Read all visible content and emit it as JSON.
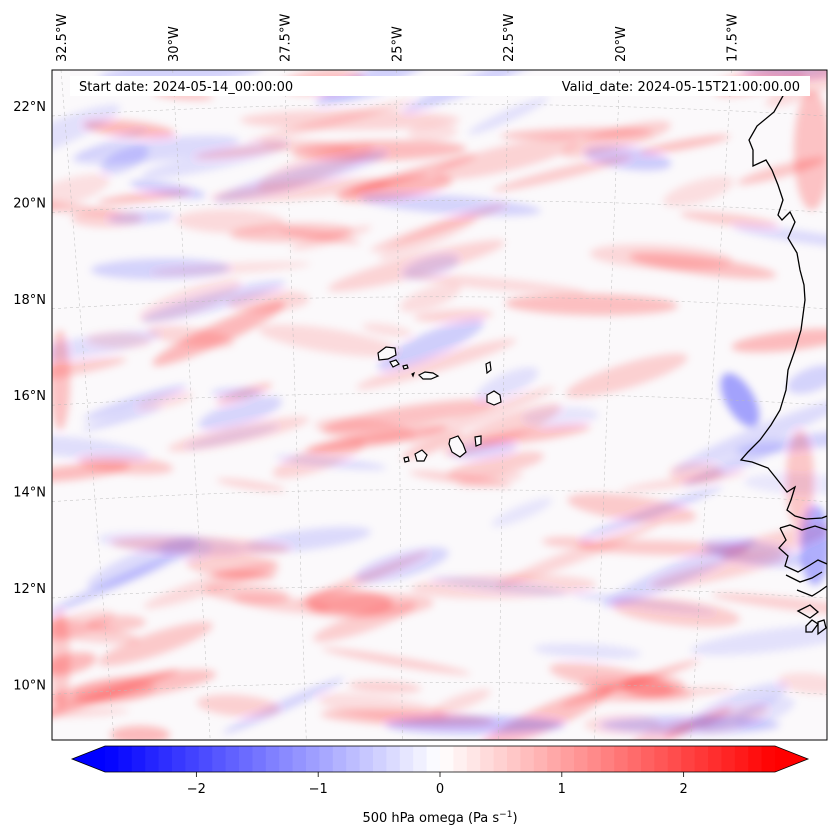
{
  "map": {
    "start_date_label": "Start date: 2024-05-14_00:00:00",
    "valid_date_label": "Valid_date: 2024-05-15T21:00:00.00",
    "lon_ticks": [
      {
        "label": "32.5°W",
        "value": -32.5
      },
      {
        "label": "30°W",
        "value": -30
      },
      {
        "label": "27.5°W",
        "value": -27.5
      },
      {
        "label": "25°W",
        "value": -25
      },
      {
        "label": "22.5°W",
        "value": -22.5
      },
      {
        "label": "20°W",
        "value": -20
      },
      {
        "label": "17.5°W",
        "value": -17.5
      }
    ],
    "lat_ticks": [
      {
        "label": "22°N",
        "value": 22
      },
      {
        "label": "20°N",
        "value": 20
      },
      {
        "label": "18°N",
        "value": 18
      },
      {
        "label": "16°N",
        "value": 16
      },
      {
        "label": "14°N",
        "value": 14
      },
      {
        "label": "12°N",
        "value": 12
      },
      {
        "label": "10°N",
        "value": 10
      }
    ],
    "colors": {
      "negative": "#0000ff",
      "neutral": "#ffffff",
      "positive": "#ff0000",
      "coastline": "#000000",
      "gridline": "#bbbbbb"
    }
  },
  "colorbar": {
    "label_main": "500 hPa omega (Pa s",
    "label_exp": "−1",
    "label_close": ")",
    "min": -2.75,
    "max": 2.75,
    "ticks": [
      {
        "label": "−2",
        "value": -2
      },
      {
        "label": "−1",
        "value": -1
      },
      {
        "label": "0",
        "value": 0
      },
      {
        "label": "1",
        "value": 1
      },
      {
        "label": "2",
        "value": 2
      }
    ]
  }
}
